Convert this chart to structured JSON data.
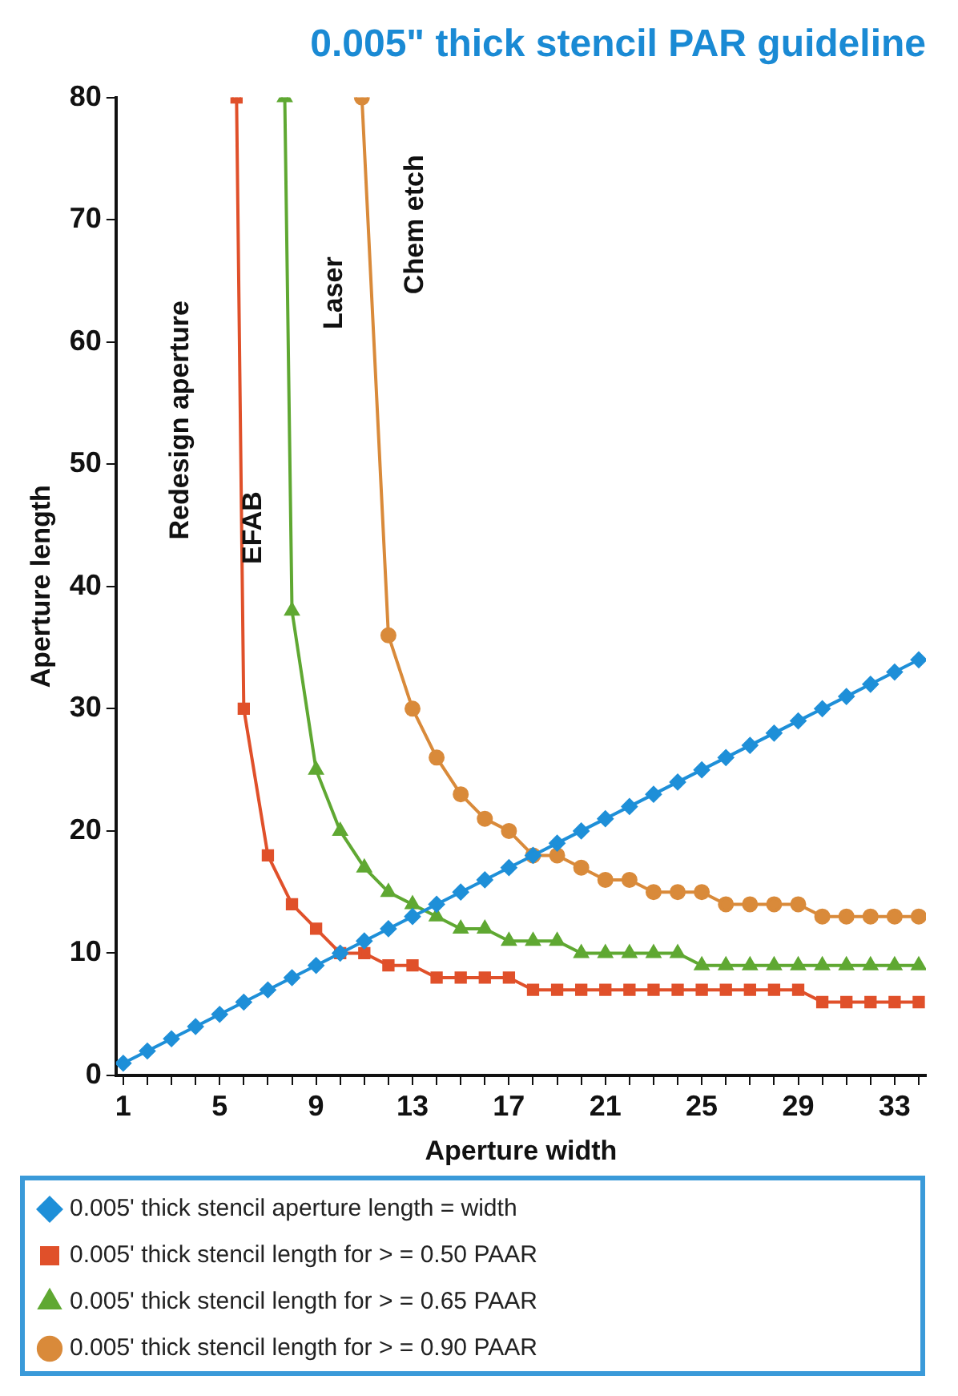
{
  "chart_data": {
    "type": "line",
    "title": "0.005\" thick stencil PAR guideline",
    "xlabel": "Aperture width",
    "ylabel": "Aperture length",
    "xlim": [
      0.7,
      34.3
    ],
    "xticks": [
      1,
      {
        "value": 2,
        "label": null
      },
      {
        "value": 3,
        "label": null
      },
      {
        "value": 4,
        "label": null
      },
      5,
      {
        "value": 6,
        "label": null
      },
      {
        "value": 7,
        "label": null
      },
      {
        "value": 8,
        "label": null
      },
      9,
      {
        "value": 10,
        "label": null
      },
      {
        "value": 11,
        "label": null
      },
      {
        "value": 12,
        "label": null
      },
      13,
      {
        "value": 14,
        "label": null
      },
      {
        "value": 15,
        "label": null
      },
      {
        "value": 16,
        "label": null
      },
      17,
      {
        "value": 18,
        "label": null
      },
      {
        "value": 19,
        "label": null
      },
      {
        "value": 20,
        "label": null
      },
      21,
      {
        "value": 22,
        "label": null
      },
      {
        "value": 23,
        "label": null
      },
      {
        "value": 24,
        "label": null
      },
      25,
      {
        "value": 26,
        "label": null
      },
      {
        "value": 27,
        "label": null
      },
      {
        "value": 28,
        "label": null
      },
      29,
      {
        "value": 30,
        "label": null
      },
      {
        "value": 31,
        "label": null
      },
      {
        "value": 32,
        "label": null
      },
      33,
      {
        "value": 34,
        "label": null
      }
    ],
    "ylim": [
      0,
      80
    ],
    "yticks": [
      0,
      10,
      20,
      30,
      40,
      50,
      60,
      70,
      80
    ],
    "grid": false,
    "legend": "bottom",
    "line_style": "solid",
    "series": [
      {
        "name": "0.005' thick stencil aperture length = width",
        "color": "#1e8fd8",
        "marker": "diamond",
        "x": [
          1,
          2,
          3,
          4,
          5,
          6,
          7,
          8,
          9,
          10,
          11,
          12,
          13,
          14,
          15,
          16,
          17,
          18,
          19,
          20,
          21,
          22,
          23,
          24,
          25,
          26,
          27,
          28,
          29,
          30,
          31,
          32,
          33,
          34
        ],
        "values": [
          1,
          2,
          3,
          4,
          5,
          6,
          7,
          8,
          9,
          10,
          11,
          12,
          13,
          14,
          15,
          16,
          17,
          18,
          19,
          20,
          21,
          22,
          23,
          24,
          25,
          26,
          27,
          28,
          29,
          30,
          31,
          32,
          33,
          34
        ]
      },
      {
        "name": "0.005' thick stencil length for > = 0.50 PAAR",
        "color": "#e0502a",
        "marker": "square",
        "x": [
          5.7,
          6,
          7,
          8,
          9,
          10,
          11,
          12,
          13,
          14,
          15,
          16,
          17,
          18,
          19,
          20,
          21,
          22,
          23,
          24,
          25,
          26,
          27,
          28,
          29,
          30,
          31,
          32,
          33,
          34
        ],
        "values": [
          80,
          30,
          18,
          14,
          12,
          10,
          10,
          9,
          9,
          8,
          8,
          8,
          8,
          7,
          7,
          7,
          7,
          7,
          7,
          7,
          7,
          7,
          7,
          7,
          7,
          6,
          6,
          6,
          6,
          6
        ]
      },
      {
        "name": "0.005' thick stencil length for > = 0.65 PAAR",
        "color": "#5fa832",
        "marker": "triangle",
        "x": [
          7.7,
          8,
          9,
          10,
          11,
          12,
          13,
          14,
          15,
          16,
          17,
          18,
          19,
          20,
          21,
          22,
          23,
          24,
          25,
          26,
          27,
          28,
          29,
          30,
          31,
          32,
          33,
          34
        ],
        "values": [
          80,
          38,
          25,
          20,
          17,
          15,
          14,
          13,
          12,
          12,
          11,
          11,
          11,
          10,
          10,
          10,
          10,
          10,
          9,
          9,
          9,
          9,
          9,
          9,
          9,
          9,
          9,
          9
        ]
      },
      {
        "name": "0.005' thick stencil length for > = 0.90 PAAR",
        "color": "#d98a3a",
        "marker": "circle",
        "x": [
          10.9,
          12,
          13,
          14,
          15,
          16,
          17,
          18,
          19,
          20,
          21,
          22,
          23,
          24,
          25,
          26,
          27,
          28,
          29,
          30,
          31,
          32,
          33,
          34
        ],
        "values": [
          80,
          36,
          30,
          26,
          23,
          21,
          20,
          18,
          18,
          17,
          16,
          16,
          15,
          15,
          15,
          14,
          14,
          14,
          14,
          13,
          13,
          13,
          13,
          13
        ]
      }
    ],
    "annotations": [
      "Redesign aperture",
      "EFAB",
      "Laser",
      "Chem etch"
    ]
  }
}
